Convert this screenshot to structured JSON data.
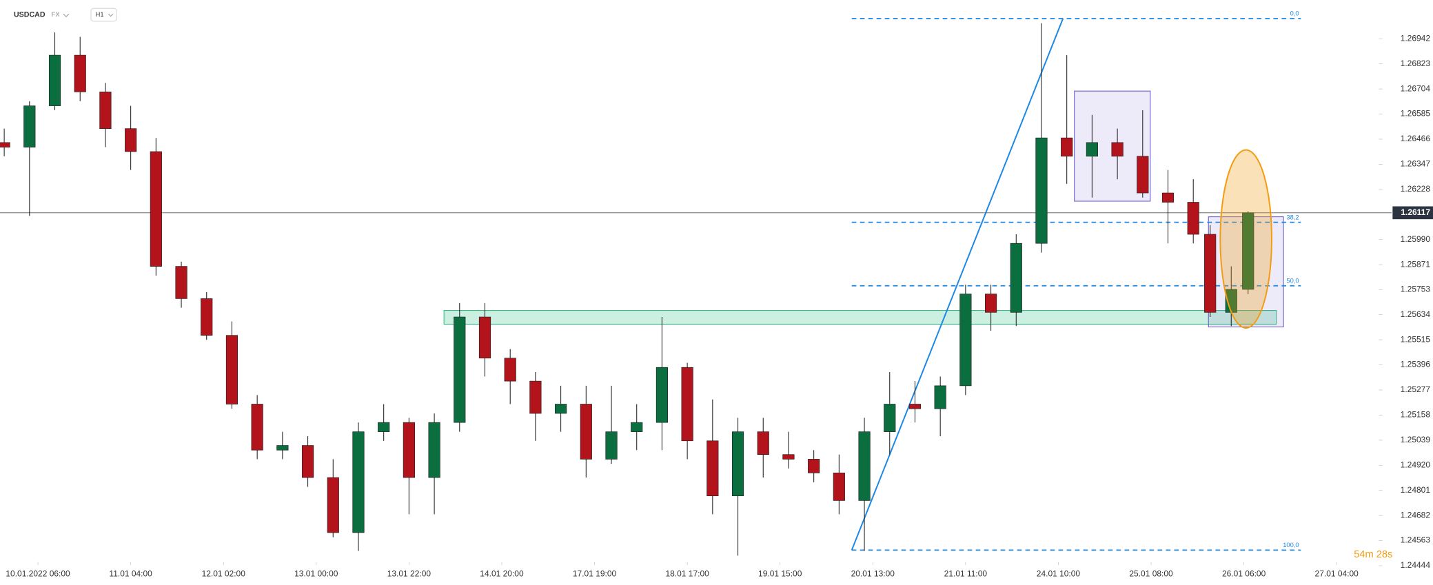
{
  "chart_data": {
    "type": "candlestick",
    "symbol": "USDCAD",
    "market": "FX",
    "interval": "H1",
    "countdown": "54m 28s",
    "up_color": "#0b6e3f",
    "down_color": "#b3141c",
    "xlim": [
      -9,
      318
    ],
    "xticks": [
      {
        "value": 0,
        "label": "10.01.2022  06:00"
      },
      {
        "value": 22,
        "label": "11.01  04:00"
      },
      {
        "value": 44,
        "label": "12.01  02:00"
      },
      {
        "value": 66,
        "label": "13.01  00:00"
      },
      {
        "value": 88,
        "label": "13.01  22:00"
      },
      {
        "value": 110,
        "label": "14.01  20:00"
      },
      {
        "value": 132,
        "label": "17.01  19:00"
      },
      {
        "value": 154,
        "label": "18.01  17:00"
      },
      {
        "value": 176,
        "label": "19.01  15:00"
      },
      {
        "value": 198,
        "label": "20.01  13:00"
      },
      {
        "value": 220,
        "label": "21.01  11:00"
      },
      {
        "value": 242,
        "label": "24.01  10:00"
      },
      {
        "value": 264,
        "label": "25.01  08:00"
      },
      {
        "value": 286,
        "label": "26.01  06:00"
      },
      {
        "value": 308,
        "label": "27.01  04:00"
      }
    ],
    "ylim": [
      1.24461,
      1.27125
    ],
    "yticks": [
      1.26942,
      1.26823,
      1.26704,
      1.26585,
      1.26466,
      1.26347,
      1.26228,
      {
        "value": 1.2599,
        "label": "1.25990"
      },
      1.25871,
      1.25753,
      1.25634,
      1.25515,
      1.25396,
      1.25277,
      1.25158,
      1.25039,
      {
        "value": 1.2492,
        "label": "1.24920"
      },
      1.24801,
      1.24682,
      1.24563,
      1.24444
    ],
    "last_price": 1.26117,
    "x": [
      -8,
      -2,
      4,
      10,
      16,
      22,
      28,
      34,
      40,
      46,
      52,
      58,
      64,
      70,
      76,
      82,
      88,
      94,
      100,
      106,
      112,
      118,
      124,
      130,
      136,
      142,
      148,
      154,
      160,
      166,
      172,
      178,
      184,
      190,
      196,
      202,
      208,
      214,
      220,
      226,
      232,
      238,
      244,
      250,
      256,
      262,
      268,
      274,
      278,
      283,
      287
    ],
    "open": [
      1.2645,
      1.26428,
      1.26624,
      1.26864,
      1.2669,
      1.26516,
      1.26407,
      1.25863,
      1.2571,
      1.25536,
      1.2521,
      1.24992,
      1.25014,
      1.24862,
      1.24601,
      1.25079,
      1.25123,
      1.24862,
      1.25123,
      1.25623,
      1.25428,
      1.25319,
      1.25166,
      1.2521,
      1.24949,
      1.25079,
      1.25123,
      1.25384,
      1.25036,
      1.24775,
      1.25079,
      1.24971,
      1.24949,
      1.24884,
      1.24753,
      1.25079,
      1.2521,
      1.25188,
      1.25297,
      1.25732,
      1.25645,
      1.25972,
      1.26472,
      1.26385,
      1.2645,
      1.26385,
      1.26211,
      1.26167,
      1.26015,
      1.25645,
      1.25754
    ],
    "high": [
      1.26516,
      1.26646,
      1.26972,
      1.26951,
      1.26733,
      1.26624,
      1.26472,
      1.25885,
      1.25741,
      1.25602,
      1.25253,
      1.25079,
      1.25058,
      1.24949,
      1.25123,
      1.2521,
      1.25145,
      1.25166,
      1.25689,
      1.25689,
      1.25471,
      1.25362,
      1.25297,
      1.25297,
      1.25297,
      1.2521,
      1.25623,
      1.25406,
      1.25232,
      1.25145,
      1.25145,
      1.25079,
      1.24992,
      1.24971,
      1.25145,
      1.25362,
      1.25319,
      1.25341,
      1.25776,
      1.25776,
      1.26015,
      1.27016,
      1.26864,
      1.26581,
      1.26516,
      1.26603,
      1.2632,
      1.26276,
      1.26059,
      1.25863,
      1.26124
    ],
    "low": [
      1.26385,
      1.26102,
      1.26603,
      1.26646,
      1.26428,
      1.2632,
      1.25819,
      1.25667,
      1.25515,
      1.25188,
      1.24949,
      1.24949,
      1.24818,
      1.24579,
      1.24514,
      1.25036,
      1.24688,
      1.24688,
      1.25079,
      1.25341,
      1.2521,
      1.25036,
      1.25079,
      1.24862,
      1.24927,
      1.24992,
      1.24992,
      1.24949,
      1.24688,
      1.24492,
      1.24862,
      1.24905,
      1.2484,
      1.24688,
      1.24514,
      1.24971,
      1.25123,
      1.25058,
      1.25253,
      1.25558,
      1.2558,
      1.25928,
      1.26254,
      1.26189,
      1.26276,
      1.26189,
      1.25972,
      1.25972,
      1.25623,
      1.2558,
      1.25732
    ],
    "close": [
      1.26428,
      1.26624,
      1.26864,
      1.2669,
      1.26516,
      1.26407,
      1.25863,
      1.2571,
      1.25536,
      1.2521,
      1.24992,
      1.25014,
      1.24862,
      1.24601,
      1.25079,
      1.25123,
      1.24862,
      1.25123,
      1.25623,
      1.25428,
      1.25319,
      1.25166,
      1.2521,
      1.24949,
      1.25079,
      1.25123,
      1.25384,
      1.25036,
      1.24775,
      1.25079,
      1.24971,
      1.24949,
      1.24884,
      1.24753,
      1.25079,
      1.2521,
      1.25188,
      1.25297,
      1.25732,
      1.25645,
      1.25972,
      1.26472,
      1.26385,
      1.2645,
      1.26385,
      1.26211,
      1.26167,
      1.26015,
      1.25645,
      1.25754,
      1.26117
    ],
    "fib_color": "#1e88e5",
    "fib_x": [
      193,
      299.5
    ],
    "fib_levels": [
      {
        "label": "0,0",
        "price": 1.27038
      },
      {
        "label": "38,2",
        "price": 1.26072
      },
      {
        "label": "50,0",
        "price": 1.25771
      },
      {
        "label": "100,0",
        "price": 1.24518
      }
    ],
    "trendline": {
      "x": [
        193,
        243.1
      ],
      "y": [
        1.24518,
        1.27038
      ],
      "color": "#1e88e5"
    },
    "zones": [
      {
        "kind": "support",
        "x": [
          96.3,
          293.7
        ],
        "y": [
          1.25589,
          1.25654
        ],
        "color": "#2fbf84"
      },
      {
        "kind": "range",
        "x": [
          245.8,
          263.8
        ],
        "y": [
          1.26172,
          1.26694
        ],
        "color": "#6a5acd"
      },
      {
        "kind": "range",
        "x": [
          277.6,
          295.4
        ],
        "y": [
          1.25576,
          1.26098
        ],
        "color": "#6a5acd"
      }
    ],
    "highlight": {
      "x": [
        280.4,
        292.6
      ],
      "y": [
        1.25571,
        1.26415
      ],
      "color": "#f39c12"
    }
  }
}
